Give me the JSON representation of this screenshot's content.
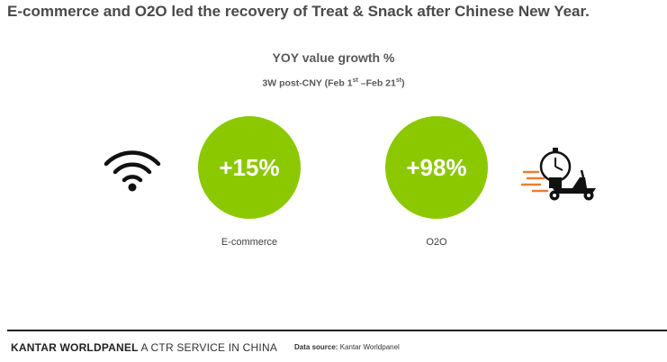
{
  "header": {
    "title": "E-commerce and O2O led the recovery of Treat & Snack after Chinese New Year."
  },
  "chart_data": {
    "type": "bubble",
    "title": "YOY value growth %",
    "subtitle": {
      "prefix": "3W post-CNY (Feb 1",
      "sup1": "st",
      "middle": " –Feb 21",
      "sup2": "st",
      "suffix": ")"
    },
    "categories": [
      "E-commerce",
      "O2O"
    ],
    "values": [
      15,
      98
    ],
    "value_labels": [
      "+15%",
      "+98%"
    ],
    "unit": "%",
    "colors": {
      "bubble": "#8cc800",
      "label": "#ffffff",
      "icon_dark": "#111111",
      "icon_accent": "#f07a2e"
    }
  },
  "icons": {
    "left": "wifi-icon",
    "right": "delivery-scooter-icon"
  },
  "footer": {
    "brand_bold": "KANTAR WORLDPANEL",
    "brand_rest": " A CTR SERVICE IN CHINA",
    "source_label": "Data source:",
    "source_value": "Kantar Worldpanel"
  }
}
